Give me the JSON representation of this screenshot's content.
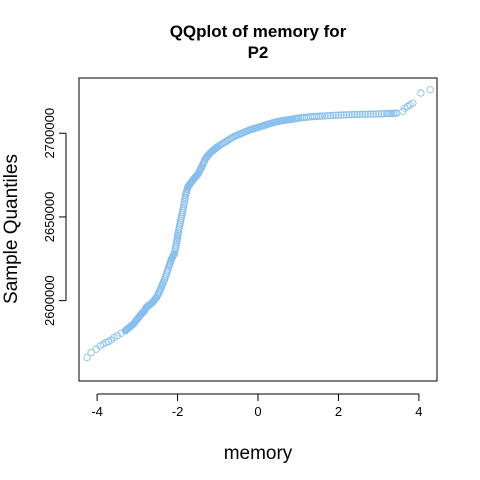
{
  "chart_data": {
    "type": "scatter",
    "title_line1": "QQplot of memory for",
    "title_line2": "P2",
    "xlabel": "memory",
    "ylabel": "Sample Quantiles",
    "xlim": [
      -4.45,
      4.45
    ],
    "ylim": [
      2552000,
      2733000
    ],
    "x_ticks": [
      -4,
      -2,
      0,
      2,
      4
    ],
    "x_tick_labels": [
      "-4",
      "-2",
      "0",
      "2",
      "4"
    ],
    "y_ticks": [
      2600000,
      2650000,
      2700000
    ],
    "y_tick_labels": [
      "2600000",
      "2650000",
      "2700000"
    ],
    "grid": false,
    "point_color": "#87bef0",
    "x": [
      -4.25,
      -4.15,
      -4.02,
      -3.92,
      -3.85,
      -3.78,
      -3.72,
      -3.65,
      -3.58,
      -3.5,
      -3.4,
      -3.3,
      -3.2,
      -3.1,
      -3.0,
      -2.9,
      -2.82,
      -2.78,
      -2.72,
      -2.62,
      -2.52,
      -2.42,
      -2.32,
      -2.22,
      -2.15,
      -2.08,
      -2.02,
      -1.98,
      -1.92,
      -1.86,
      -1.8,
      -1.74,
      -1.68,
      -1.62,
      -1.55,
      -1.48,
      -1.4,
      -1.3,
      -1.2,
      -1.1,
      -1.0,
      -0.8,
      -0.6,
      -0.4,
      -0.2,
      0.0,
      0.2,
      0.4,
      0.6,
      0.8,
      1.0,
      1.3,
      1.6,
      2.0,
      2.4,
      2.8,
      3.2,
      3.45,
      3.6,
      3.65,
      3.72,
      3.78,
      3.85,
      4.05,
      4.28
    ],
    "y": [
      2566000,
      2569000,
      2571000,
      2573000,
      2574000,
      2575000,
      2575500,
      2576500,
      2578000,
      2579000,
      2580500,
      2582000,
      2584000,
      2586000,
      2589000,
      2592000,
      2594000,
      2596000,
      2597000,
      2599000,
      2602000,
      2607000,
      2613000,
      2620000,
      2625000,
      2628000,
      2635000,
      2641000,
      2648000,
      2655000,
      2663000,
      2668000,
      2670000,
      2672000,
      2674000,
      2676000,
      2680000,
      2685000,
      2688000,
      2690000,
      2692000,
      2695000,
      2698000,
      2700000,
      2702000,
      2703500,
      2705000,
      2706500,
      2707500,
      2708200,
      2709000,
      2709800,
      2710300,
      2710800,
      2711200,
      2711400,
      2711700,
      2712000,
      2713000,
      2715000,
      2716000,
      2717000,
      2718000,
      2724000,
      2726000
    ]
  }
}
